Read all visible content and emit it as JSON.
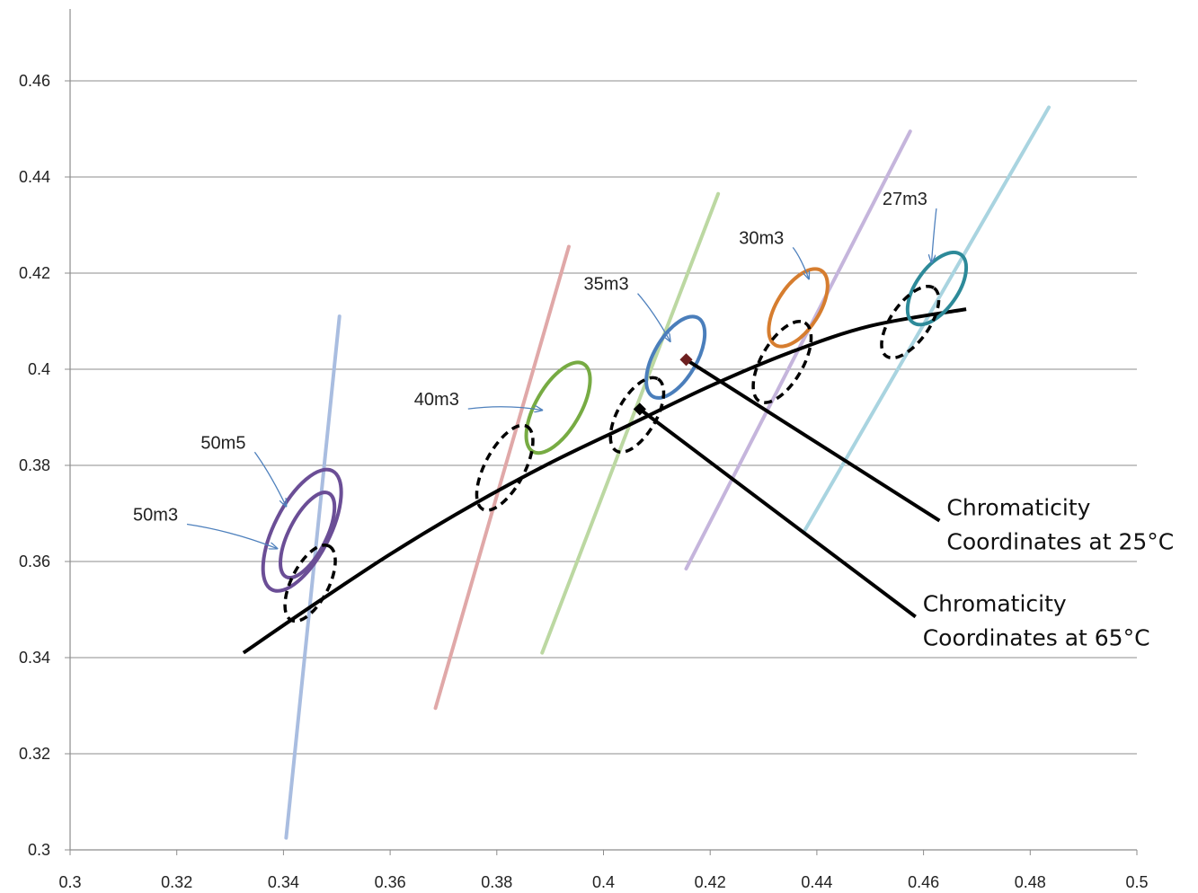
{
  "chart_data": {
    "type": "scatter",
    "xlim": [
      0.3,
      0.5
    ],
    "ylim": [
      0.3,
      0.47
    ],
    "x_ticks": [
      "0.3",
      "0.32",
      "0.34",
      "0.36",
      "0.38",
      "0.4",
      "0.42",
      "0.44",
      "0.46",
      "0.48",
      "0.5"
    ],
    "y_ticks": [
      "0.3",
      "0.32",
      "0.34",
      "0.36",
      "0.38",
      "0.4",
      "0.42",
      "0.44",
      "0.46"
    ],
    "grid": "horizontal",
    "isotherm_lines": [
      {
        "color": "#a9bde0",
        "x": [
          0.3405,
          0.3505
        ],
        "y": [
          0.3025,
          0.411
        ]
      },
      {
        "color": "#e0a8a8",
        "x": [
          0.3685,
          0.3935
        ],
        "y": [
          0.3295,
          0.4255
        ]
      },
      {
        "color": "#bcd8a2",
        "x": [
          0.3885,
          0.4215
        ],
        "y": [
          0.341,
          0.4365
        ]
      },
      {
        "color": "#c5b5dc",
        "x": [
          0.4155,
          0.4575
        ],
        "y": [
          0.3585,
          0.4495
        ]
      },
      {
        "color": "#a9d4e0",
        "x": [
          0.4375,
          0.4835
        ],
        "y": [
          0.366,
          0.4545
        ]
      }
    ],
    "locus_curve": {
      "color": "#000000",
      "points": [
        [
          0.3325,
          0.341
        ],
        [
          0.345,
          0.3505
        ],
        [
          0.36,
          0.3615
        ],
        [
          0.375,
          0.3715
        ],
        [
          0.39,
          0.3805
        ],
        [
          0.405,
          0.3885
        ],
        [
          0.42,
          0.3965
        ],
        [
          0.435,
          0.4035
        ],
        [
          0.45,
          0.409
        ],
        [
          0.468,
          0.4125
        ]
      ]
    },
    "ellipses": [
      {
        "label": "50m5",
        "color": "#6b4e96",
        "cx": 0.3435,
        "cy": 0.3665,
        "rx": 0.0125,
        "ry": 0.0052,
        "rot": 63,
        "style": "solid"
      },
      {
        "label": "50m3",
        "color": "#6b4e96",
        "cx": 0.3445,
        "cy": 0.3655,
        "rx": 0.0088,
        "ry": 0.0035,
        "rot": 63,
        "style": "solid"
      },
      {
        "label": "",
        "color": "#000000",
        "cx": 0.345,
        "cy": 0.3555,
        "rx": 0.0078,
        "ry": 0.0035,
        "rot": 63,
        "style": "dashed"
      },
      {
        "label": "40m3",
        "color": "#77ab43",
        "cx": 0.3915,
        "cy": 0.392,
        "rx": 0.0095,
        "ry": 0.0042,
        "rot": 60,
        "style": "solid"
      },
      {
        "label": "",
        "color": "#000000",
        "cx": 0.3815,
        "cy": 0.3795,
        "rx": 0.0088,
        "ry": 0.0037,
        "rot": 62,
        "style": "dashed"
      },
      {
        "label": "35m3",
        "color": "#4a7ebb",
        "cx": 0.4135,
        "cy": 0.4025,
        "rx": 0.0085,
        "ry": 0.004,
        "rot": 60,
        "style": "solid"
      },
      {
        "label": "",
        "color": "#000000",
        "cx": 0.4063,
        "cy": 0.3905,
        "rx": 0.0078,
        "ry": 0.0036,
        "rot": 60,
        "style": "dashed"
      },
      {
        "label": "30m3",
        "color": "#d67d2f",
        "cx": 0.4365,
        "cy": 0.4128,
        "rx": 0.0082,
        "ry": 0.004,
        "rot": 58,
        "style": "solid"
      },
      {
        "label": "",
        "color": "#000000",
        "cx": 0.4335,
        "cy": 0.4015,
        "rx": 0.0085,
        "ry": 0.0039,
        "rot": 60,
        "style": "dashed"
      },
      {
        "label": "27m3",
        "color": "#2d8a99",
        "cx": 0.4625,
        "cy": 0.4168,
        "rx": 0.0078,
        "ry": 0.0039,
        "rot": 55,
        "style": "solid"
      },
      {
        "label": "",
        "color": "#000000",
        "cx": 0.4575,
        "cy": 0.4098,
        "rx": 0.0078,
        "ry": 0.0036,
        "rot": 55,
        "style": "dashed"
      }
    ],
    "markers": [
      {
        "name": "25C",
        "x": 0.4155,
        "y": 0.402,
        "color": "#6d1f1f"
      },
      {
        "name": "65C",
        "x": 0.4068,
        "y": 0.3917,
        "color": "#000000"
      }
    ],
    "annotations": [
      {
        "text": "50m5",
        "x": 0.3245,
        "y": 0.3835,
        "color": "#7b5ea7",
        "arrow_to": [
          0.3405,
          0.3715
        ]
      },
      {
        "text": "50m3",
        "x": 0.3118,
        "y": 0.3685,
        "color": "#222222",
        "arrow_to": [
          0.3388,
          0.3627
        ]
      },
      {
        "text": "40m3",
        "x": 0.3645,
        "y": 0.3925,
        "color": "#222222",
        "arrow_to": [
          0.3885,
          0.3915
        ]
      },
      {
        "text": "35m3",
        "x": 0.3963,
        "y": 0.4165,
        "color": "#222222",
        "arrow_to": [
          0.4125,
          0.4058
        ]
      },
      {
        "text": "30m3",
        "x": 0.4254,
        "y": 0.4261,
        "color": "#222222",
        "arrow_to": [
          0.4385,
          0.4188
        ]
      },
      {
        "text": "27m3",
        "x": 0.4523,
        "y": 0.4342,
        "color": "#222222",
        "arrow_to": [
          0.4615,
          0.4222
        ]
      }
    ],
    "callouts": [
      {
        "lines": [
          "Chromaticity",
          "Coordinates at 25°C"
        ],
        "from": [
          0.4155,
          0.402
        ],
        "to": [
          0.463,
          0.3685
        ]
      },
      {
        "lines": [
          "Chromaticity",
          "Coordinates at 65°C"
        ],
        "from": [
          0.4068,
          0.3917
        ],
        "to": [
          0.4585,
          0.3485
        ]
      }
    ]
  }
}
